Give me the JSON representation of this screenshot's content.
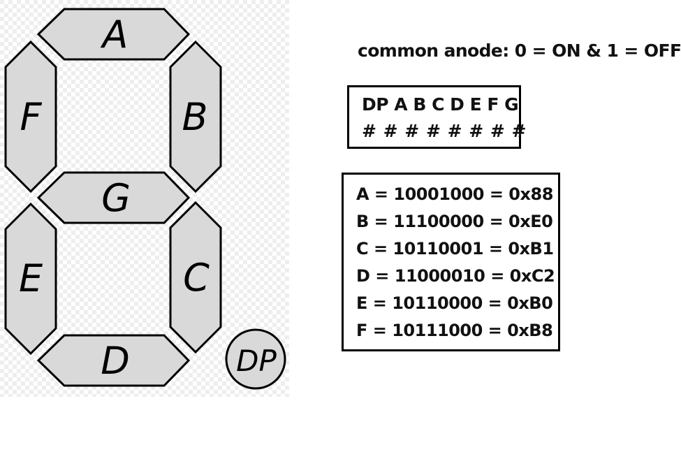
{
  "display": {
    "segments": {
      "a": "A",
      "b": "B",
      "c": "C",
      "d": "D",
      "e": "E",
      "f": "F",
      "g": "G",
      "dp": "DP"
    },
    "colors": {
      "segment_fill": "#d9d9d9",
      "stroke": "#000000",
      "panel_grid": "#e6e6e6"
    }
  },
  "heading": "common anode: 0 = ON & 1 = OFF",
  "bit_box": {
    "order": "DP A B C D E F G",
    "placeholders": "# # # # # # # #"
  },
  "codes": [
    "A = 10001000 = 0x88",
    "B = 11100000 = 0xE0",
    "C = 10110001 = 0xB1",
    "D = 11000010 = 0xC2",
    "E = 10110000 = 0xB0",
    "F = 10111000 = 0xB8"
  ]
}
